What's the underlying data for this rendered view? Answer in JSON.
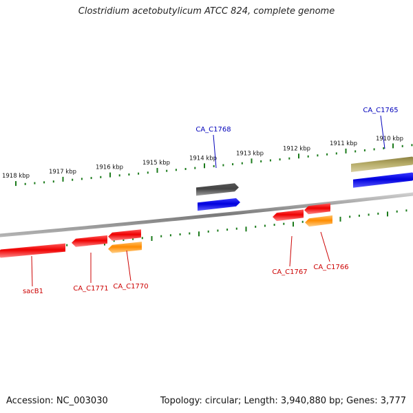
{
  "title": "Clostridium acetobutylicum ATCC 824, complete genome",
  "footer": {
    "accession": "Accession: NC_003030",
    "summary": "Topology: circular; Length: 3,940,880 bp; Genes: 3,777"
  },
  "colors": {
    "backbone": "#888888",
    "tick": "#1a7a1a",
    "gene_red": "#ee1111",
    "gene_orange": "#ff9a1a",
    "gene_blue": "#1010ee",
    "gene_gray": "#666666",
    "gene_khaki": "#b8ae6a",
    "label_red": "#cc0000",
    "label_blue": "#0000bb"
  },
  "ruler": {
    "major_labels": [
      "1918 kbp",
      "1917 kbp",
      "1916 kbp",
      "1915 kbp",
      "1914 kbp",
      "1913 kbp",
      "1912 kbp",
      "1911 kbp",
      "1910 kbp"
    ]
  },
  "genes": [
    {
      "label": "sacB1",
      "color": "gene_red",
      "strand": "-"
    },
    {
      "label": "CA_C1771",
      "color": "gene_red",
      "strand": "-"
    },
    {
      "label": "CA_C1770",
      "color": "gene_red",
      "strand": "-"
    },
    {
      "label": "",
      "color": "gene_orange",
      "strand": "-"
    },
    {
      "label": "CA_C1768",
      "color": "gene_gray",
      "strand": "+"
    },
    {
      "label": "",
      "color": "gene_blue",
      "strand": "+"
    },
    {
      "label": "CA_C1767",
      "color": "gene_red",
      "strand": "-"
    },
    {
      "label": "CA_C1766",
      "color": "gene_red",
      "strand": "-"
    },
    {
      "label": "",
      "color": "gene_orange",
      "strand": "-"
    },
    {
      "label": "CA_C1765",
      "color": "gene_khaki",
      "strand": "+"
    },
    {
      "label": "",
      "color": "gene_blue",
      "strand": "+"
    }
  ]
}
